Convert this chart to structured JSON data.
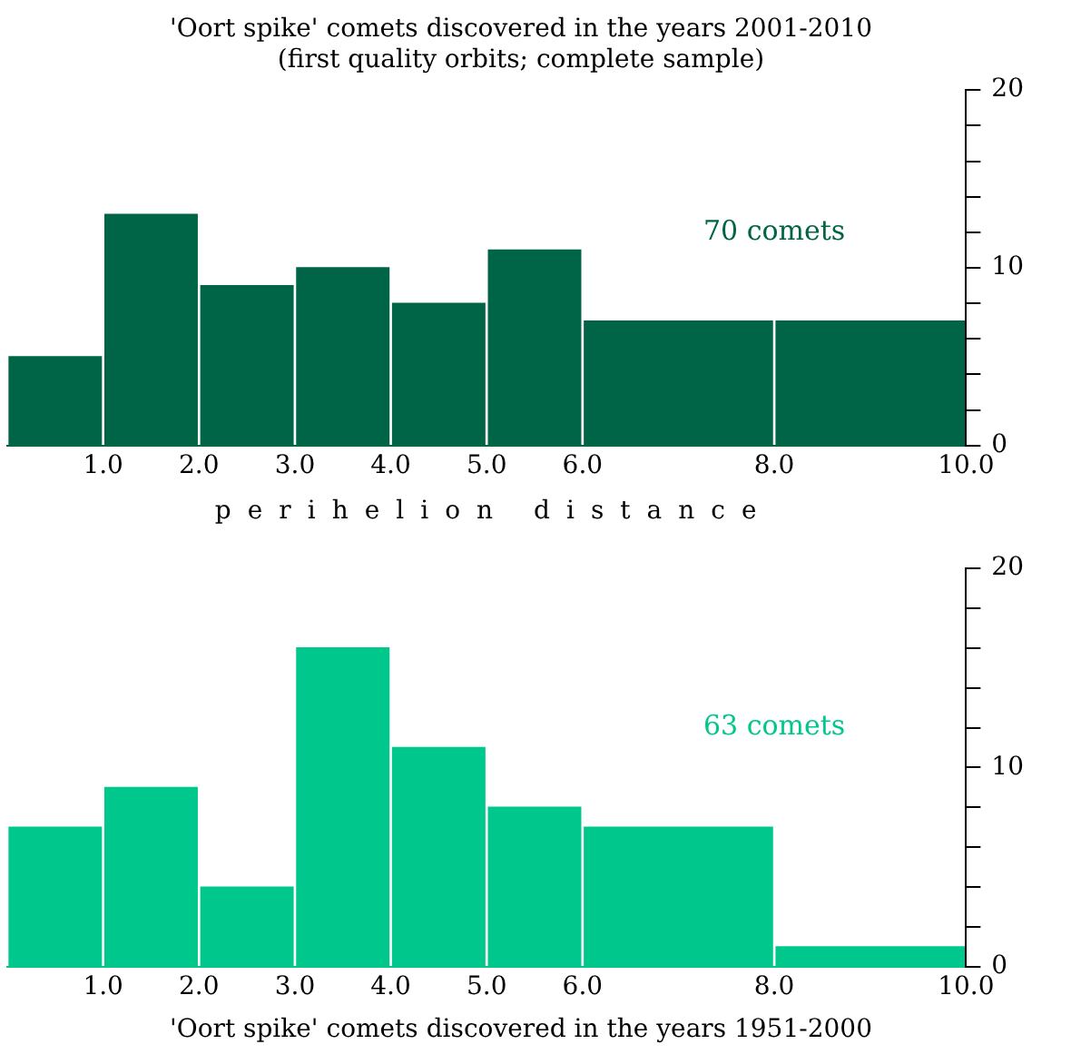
{
  "chart_data": [
    {
      "type": "histogram",
      "title": "'Oort spike' comets discovered in the years 2001-2010",
      "subtitle": "(first quality orbits; complete sample)",
      "xlabel": "perihelion distance",
      "annotations": [
        "70 comets"
      ],
      "bins": [
        0,
        1,
        2,
        3,
        4,
        5,
        6,
        8,
        10
      ],
      "values": [
        5,
        13,
        9,
        10,
        8,
        11,
        7,
        7
      ],
      "color": "#006446",
      "xlim": [
        0,
        10
      ],
      "xticks": [
        {
          "value": 1,
          "label": "1.0"
        },
        {
          "value": 2,
          "label": "2.0"
        },
        {
          "value": 3,
          "label": "3.0"
        },
        {
          "value": 4,
          "label": "4.0"
        },
        {
          "value": 5,
          "label": "5.0"
        },
        {
          "value": 6,
          "label": "6.0"
        },
        {
          "value": 8,
          "label": "8.0"
        },
        {
          "value": 10,
          "label": "10.0"
        }
      ],
      "ylim": [
        0,
        20
      ],
      "yticks": [
        0,
        {
          "value": 2,
          "label": null
        },
        {
          "value": 4,
          "label": null
        },
        {
          "value": 6,
          "label": null
        },
        {
          "value": 8,
          "label": null
        },
        10,
        {
          "value": 12,
          "label": null
        },
        {
          "value": 14,
          "label": null
        },
        {
          "value": 16,
          "label": null
        },
        {
          "value": 18,
          "label": null
        },
        20
      ],
      "grid": false,
      "legend": false
    },
    {
      "type": "histogram",
      "title": "'Oort spike' comets discovered in the years 1951-2000",
      "annotations": [
        "63 comets"
      ],
      "bins": [
        0,
        1,
        2,
        3,
        4,
        5,
        6,
        8,
        10
      ],
      "values": [
        7,
        9,
        4,
        16,
        11,
        8,
        7,
        1
      ],
      "color": "#00c78c",
      "xlim": [
        0,
        10
      ],
      "xticks": [
        {
          "value": 1,
          "label": "1.0"
        },
        {
          "value": 2,
          "label": "2.0"
        },
        {
          "value": 3,
          "label": "3.0"
        },
        {
          "value": 4,
          "label": "4.0"
        },
        {
          "value": 5,
          "label": "5.0"
        },
        {
          "value": 6,
          "label": "6.0"
        },
        {
          "value": 8,
          "label": "8.0"
        },
        {
          "value": 10,
          "label": "10.0"
        }
      ],
      "ylim": [
        0,
        20
      ],
      "yticks": [
        0,
        {
          "value": 2,
          "label": null
        },
        {
          "value": 4,
          "label": null
        },
        {
          "value": 6,
          "label": null
        },
        {
          "value": 8,
          "label": null
        },
        10,
        {
          "value": 12,
          "label": null
        },
        {
          "value": 14,
          "label": null
        },
        {
          "value": 16,
          "label": null
        },
        {
          "value": 18,
          "label": null
        },
        20
      ],
      "grid": false,
      "legend": false
    }
  ]
}
